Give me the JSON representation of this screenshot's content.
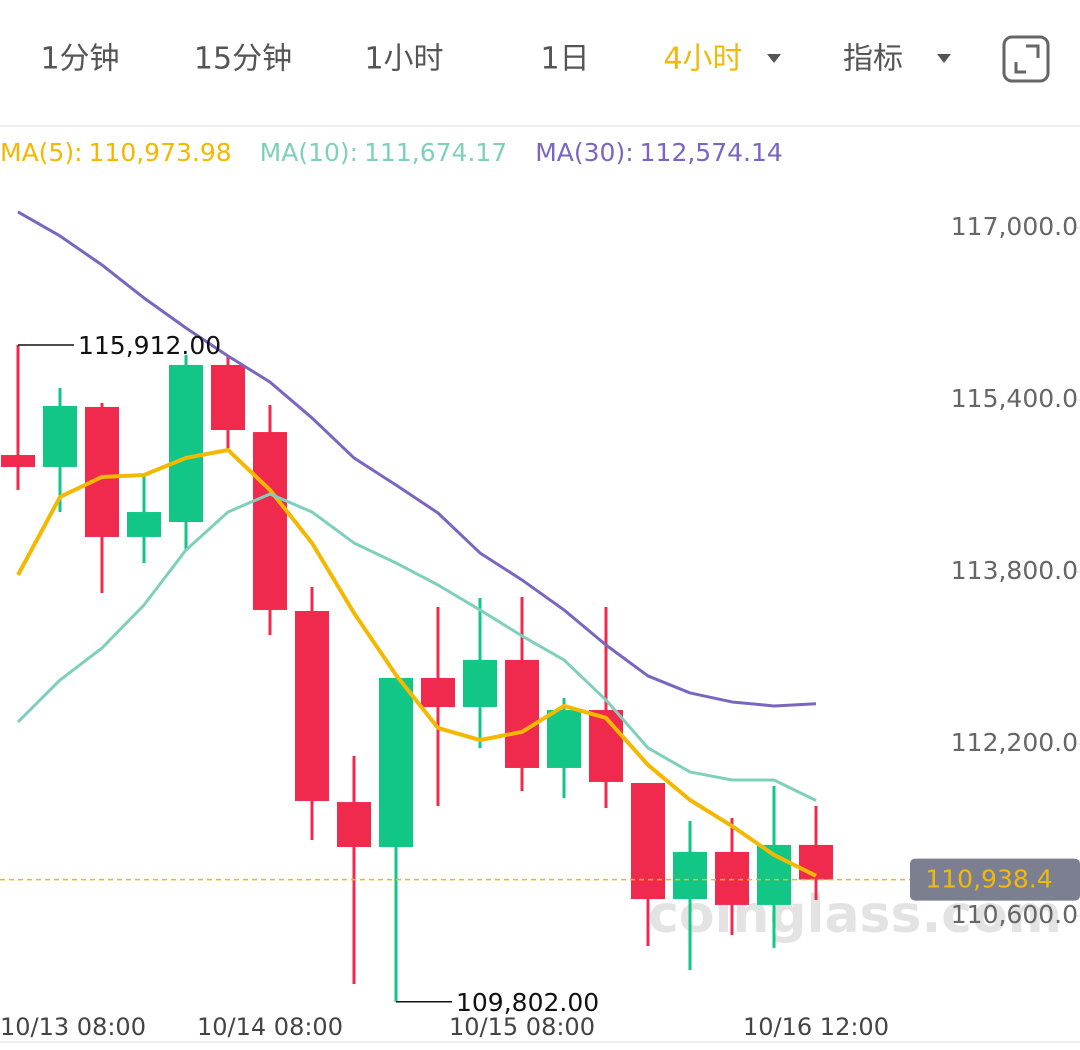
{
  "tabs": {
    "items": [
      "1分钟",
      "15分钟",
      "1小时",
      "1日",
      "4小时",
      "指标"
    ],
    "active": "4小时"
  },
  "chart_data": {
    "type": "candlestick",
    "categories": [
      "10/13 08:00",
      null,
      null,
      null,
      null,
      null,
      "10/14 08:00",
      null,
      null,
      null,
      null,
      null,
      "10/15 08:00",
      null,
      null,
      null,
      null,
      null,
      null,
      "10/16 12:00"
    ],
    "open": [
      114888,
      114777,
      115335,
      114126,
      114265,
      115726,
      115102,
      113437,
      111660,
      111242,
      112814,
      112544,
      112982,
      111977,
      112516,
      111837,
      110758,
      111196,
      110703,
      111261
    ],
    "high": [
      115912,
      115512,
      115372,
      114693,
      115819,
      115809,
      115354,
      113661,
      112089,
      112814,
      113475,
      113558,
      113567,
      112628,
      113475,
      111837,
      111484,
      111512,
      111809,
      111623
    ],
    "low": [
      114563,
      114358,
      113605,
      113884,
      114014,
      114935,
      113214,
      111307,
      109968,
      109802,
      111623,
      112163,
      111763,
      111698,
      111605,
      110321,
      110098,
      110423,
      110303,
      110749
    ],
    "close": [
      114777,
      115344,
      114126,
      114358,
      115726,
      115121,
      113447,
      111670,
      111242,
      112814,
      112544,
      112982,
      111977,
      112516,
      111847,
      110758,
      111196,
      110703,
      111261,
      110938.4
    ],
    "up_color": "#12c785",
    "down_color": "#ef2a4c",
    "series": [
      {
        "name": "MA(5):",
        "color": "#f5b800",
        "value_label": "110,973.98",
        "values": [
          113772,
          114498,
          114684,
          114702,
          114861,
          114935,
          114563,
          114070,
          113419,
          112842,
          112349,
          112237,
          112312,
          112554,
          112442,
          112005,
          111679,
          111437,
          111168,
          110973.98
        ]
      },
      {
        "name": "MA(10):",
        "color": "#7ed0bd",
        "value_label": "111,674.17",
        "values": [
          112405,
          112795,
          113093,
          113493,
          114005,
          114358,
          114526,
          114358,
          114070,
          113884,
          113679,
          113447,
          113205,
          112982,
          112609,
          112163,
          111940,
          111865,
          111865,
          111674.17
        ]
      },
      {
        "name": "MA(30):",
        "color": "#7a66c0",
        "value_label": "112,574.14",
        "values": [
          117149,
          116926,
          116656,
          116349,
          116070,
          115809,
          115567,
          115233,
          114861,
          114609,
          114349,
          113977,
          113726,
          113447,
          113121,
          112833,
          112675,
          112591,
          112554,
          112574.14
        ]
      }
    ],
    "ylim": [
      109400,
      117800
    ],
    "yticks": [
      {
        "value": 117000,
        "label": "117,000.0"
      },
      {
        "value": 115400,
        "label": "115,400.0"
      },
      {
        "value": 113800,
        "label": "113,800.0"
      },
      {
        "value": 112200,
        "label": "112,200.0"
      },
      {
        "value": 110600,
        "label": "110,600.0"
      }
    ],
    "high_label": "115,912.00",
    "low_label": "109,802.00",
    "last_price": {
      "value": 110938.4,
      "label": "110,938.4"
    },
    "watermark": "coinglass.com"
  }
}
